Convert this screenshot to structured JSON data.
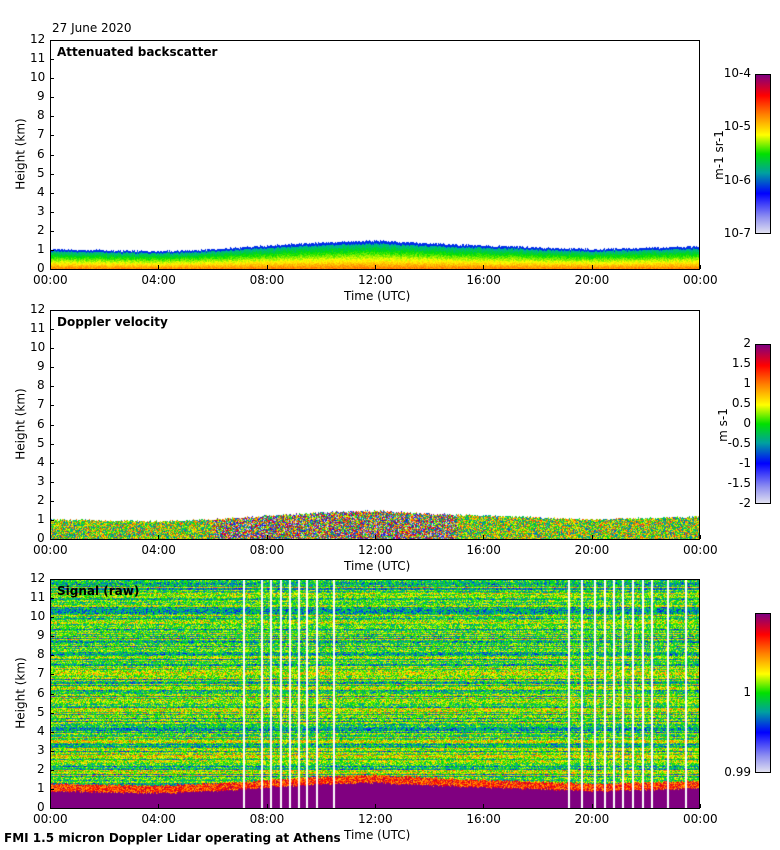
{
  "date_label": "27 June 2020",
  "footer": "FMI 1.5 micron Doppler Lidar operating at Athens",
  "colors": {
    "profile_fill": "#800080",
    "gap": "#ffffff"
  },
  "chart_data": [
    {
      "type": "heatmap",
      "title": "Attenuated backscatter",
      "xlabel": "Time (UTC)",
      "ylabel": "Height (km)",
      "xticks": [
        "00:00",
        "04:00",
        "08:00",
        "12:00",
        "16:00",
        "20:00",
        "00:00"
      ],
      "yticks": [
        "0",
        "1",
        "2",
        "3",
        "4",
        "5",
        "6",
        "7",
        "8",
        "9",
        "10",
        "11",
        "12"
      ],
      "ylim": [
        0,
        12
      ],
      "xlim_hours": [
        0,
        24
      ],
      "colorbar": {
        "label": "m-1 sr-1",
        "ticks": [
          "10-4",
          "10-5",
          "10-6",
          "10-7"
        ],
        "range": [
          1e-07,
          0.0001
        ],
        "scale": "log"
      },
      "boundary_layer_top_km": {
        "hours": [
          0,
          4,
          6,
          8,
          10.5,
          12,
          14,
          16,
          20,
          24
        ],
        "values": [
          1.1,
          1.0,
          1.1,
          1.3,
          1.5,
          1.55,
          1.4,
          1.3,
          1.1,
          1.25
        ]
      }
    },
    {
      "type": "heatmap",
      "title": "Doppler velocity",
      "xlabel": "Time (UTC)",
      "ylabel": "Height (km)",
      "xticks": [
        "00:00",
        "04:00",
        "08:00",
        "12:00",
        "16:00",
        "20:00",
        "00:00"
      ],
      "yticks": [
        "0",
        "1",
        "2",
        "3",
        "4",
        "5",
        "6",
        "7",
        "8",
        "9",
        "10",
        "11",
        "12"
      ],
      "ylim": [
        0,
        12
      ],
      "colorbar": {
        "label": "m s-1",
        "ticks": [
          "2",
          "1.5",
          "1",
          "0.5",
          "0",
          "-0.5",
          "-1",
          "-1.5",
          "-2"
        ],
        "range": [
          -2,
          2
        ]
      }
    },
    {
      "type": "heatmap",
      "title": "Signal (raw)",
      "xlabel": "Time (UTC)",
      "ylabel": "Height (km)",
      "xticks": [
        "00:00",
        "04:00",
        "08:00",
        "12:00",
        "16:00",
        "20:00",
        "00:00"
      ],
      "yticks": [
        "0",
        "1",
        "2",
        "3",
        "4",
        "5",
        "6",
        "7",
        "8",
        "9",
        "10",
        "11",
        "12"
      ],
      "ylim": [
        0,
        12
      ],
      "colorbar": {
        "ticks": [
          "1",
          "0.99"
        ],
        "range": [
          0.99,
          1.01
        ]
      },
      "gap_hours": [
        7.09,
        7.75,
        8.09,
        8.45,
        8.79,
        9.12,
        9.42,
        9.79,
        10.41,
        19.09,
        19.57,
        20.05,
        20.42,
        20.75,
        21.08,
        21.45,
        21.82,
        22.16,
        22.75,
        23.4
      ]
    }
  ]
}
